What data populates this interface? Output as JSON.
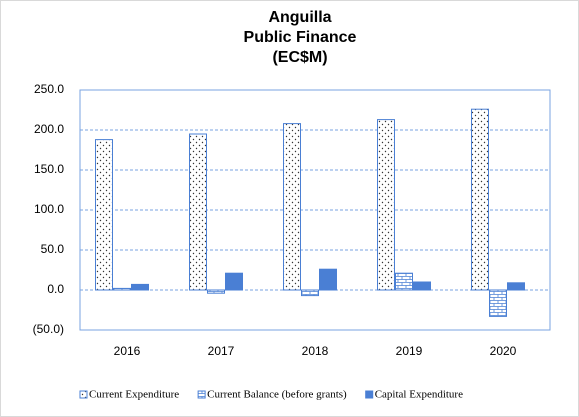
{
  "chart_data": {
    "type": "bar",
    "title": [
      "Anguilla",
      "Public Finance",
      "(EC$M)"
    ],
    "categories": [
      "2016",
      "2017",
      "2018",
      "2019",
      "2020"
    ],
    "series": [
      {
        "name": "Current Expenditure",
        "color": "#4a7fd4",
        "pattern": "dots",
        "values": [
          188,
          195,
          208,
          213,
          226
        ]
      },
      {
        "name": "Current Balance (before grants)",
        "color": "#4a7fd4",
        "pattern": "brick",
        "values": [
          2,
          -4,
          -7,
          21,
          -33
        ]
      },
      {
        "name": "Capital Expenditure",
        "color": "#4a7fd4",
        "pattern": "solid",
        "values": [
          7,
          21,
          26,
          10,
          9
        ]
      }
    ],
    "ylim": [
      -50,
      250
    ],
    "yticks": [
      {
        "value": -50,
        "label": "(50.0)"
      },
      {
        "value": 0,
        "label": "0.0"
      },
      {
        "value": 50,
        "label": "50.0"
      },
      {
        "value": 100,
        "label": "100.0"
      },
      {
        "value": 150,
        "label": "150.0"
      },
      {
        "value": 200,
        "label": "200.0"
      },
      {
        "value": 250,
        "label": "250.0"
      }
    ],
    "grid": true,
    "legend": "bottom"
  }
}
